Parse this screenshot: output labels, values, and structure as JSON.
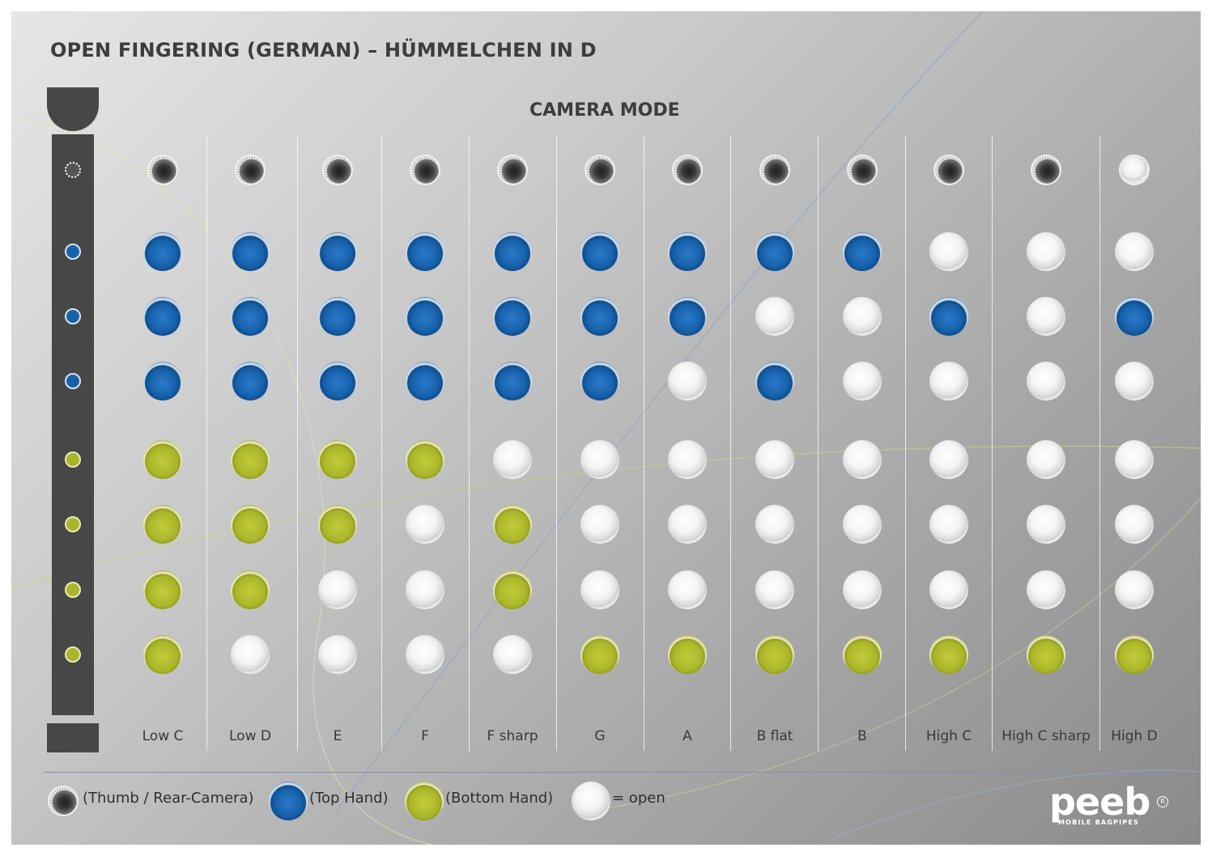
{
  "header": {
    "title": "OPEN FINGERING (GERMAN) – HÜMMELCHEN IN D",
    "mode_label": "CAMERA MODE"
  },
  "chart_data": {
    "type": "table",
    "row_order": [
      "thumb",
      "top1",
      "top2",
      "top3",
      "bottom1",
      "bottom2",
      "bottom3",
      "bottom4"
    ],
    "columns": [
      {
        "label": "Low C",
        "holes": [
          "thumb",
          "top",
          "top",
          "top",
          "bottom",
          "bottom",
          "bottom",
          "bottom"
        ]
      },
      {
        "label": "Low D",
        "holes": [
          "thumb",
          "top",
          "top",
          "top",
          "bottom",
          "bottom",
          "bottom",
          "open"
        ]
      },
      {
        "label": "E",
        "holes": [
          "thumb",
          "top",
          "top",
          "top",
          "bottom",
          "bottom",
          "open",
          "open"
        ]
      },
      {
        "label": "F",
        "holes": [
          "thumb",
          "top",
          "top",
          "top",
          "bottom",
          "open",
          "open",
          "open"
        ]
      },
      {
        "label": "F sharp",
        "holes": [
          "thumb",
          "top",
          "top",
          "top",
          "open",
          "bottom",
          "bottom",
          "open"
        ]
      },
      {
        "label": "G",
        "holes": [
          "thumb",
          "top",
          "top",
          "top",
          "open",
          "open",
          "open",
          "bottom"
        ]
      },
      {
        "label": "A",
        "holes": [
          "thumb",
          "top",
          "top",
          "open",
          "open",
          "open",
          "open",
          "bottom"
        ]
      },
      {
        "label": "B flat",
        "holes": [
          "thumb",
          "top",
          "open",
          "top",
          "open",
          "open",
          "open",
          "bottom"
        ]
      },
      {
        "label": "B",
        "holes": [
          "thumb",
          "top",
          "open",
          "open",
          "open",
          "open",
          "open",
          "bottom"
        ]
      },
      {
        "label": "High C",
        "holes": [
          "thumb",
          "open",
          "top",
          "open",
          "open",
          "open",
          "open",
          "bottom"
        ]
      },
      {
        "label": "High C sharp",
        "holes": [
          "thumb",
          "open",
          "open",
          "open",
          "open",
          "open",
          "open",
          "bottom"
        ]
      },
      {
        "label": "High D",
        "holes": [
          "open",
          "open",
          "top",
          "open",
          "open",
          "open",
          "open",
          "bottom"
        ]
      }
    ]
  },
  "legend": {
    "thumb": "(Thumb / Rear-Camera)",
    "top": "(Top Hand)",
    "bottom": "(Bottom Hand)",
    "open": "= open"
  },
  "colors": {
    "top_hand": "#1762ab",
    "bottom_hand": "#aab62a",
    "pipe": "#474747",
    "open": "#f2f2f2"
  },
  "brand": {
    "name": "peeb",
    "registered": "R",
    "tagline": "MOBILE BAGPIPES"
  }
}
